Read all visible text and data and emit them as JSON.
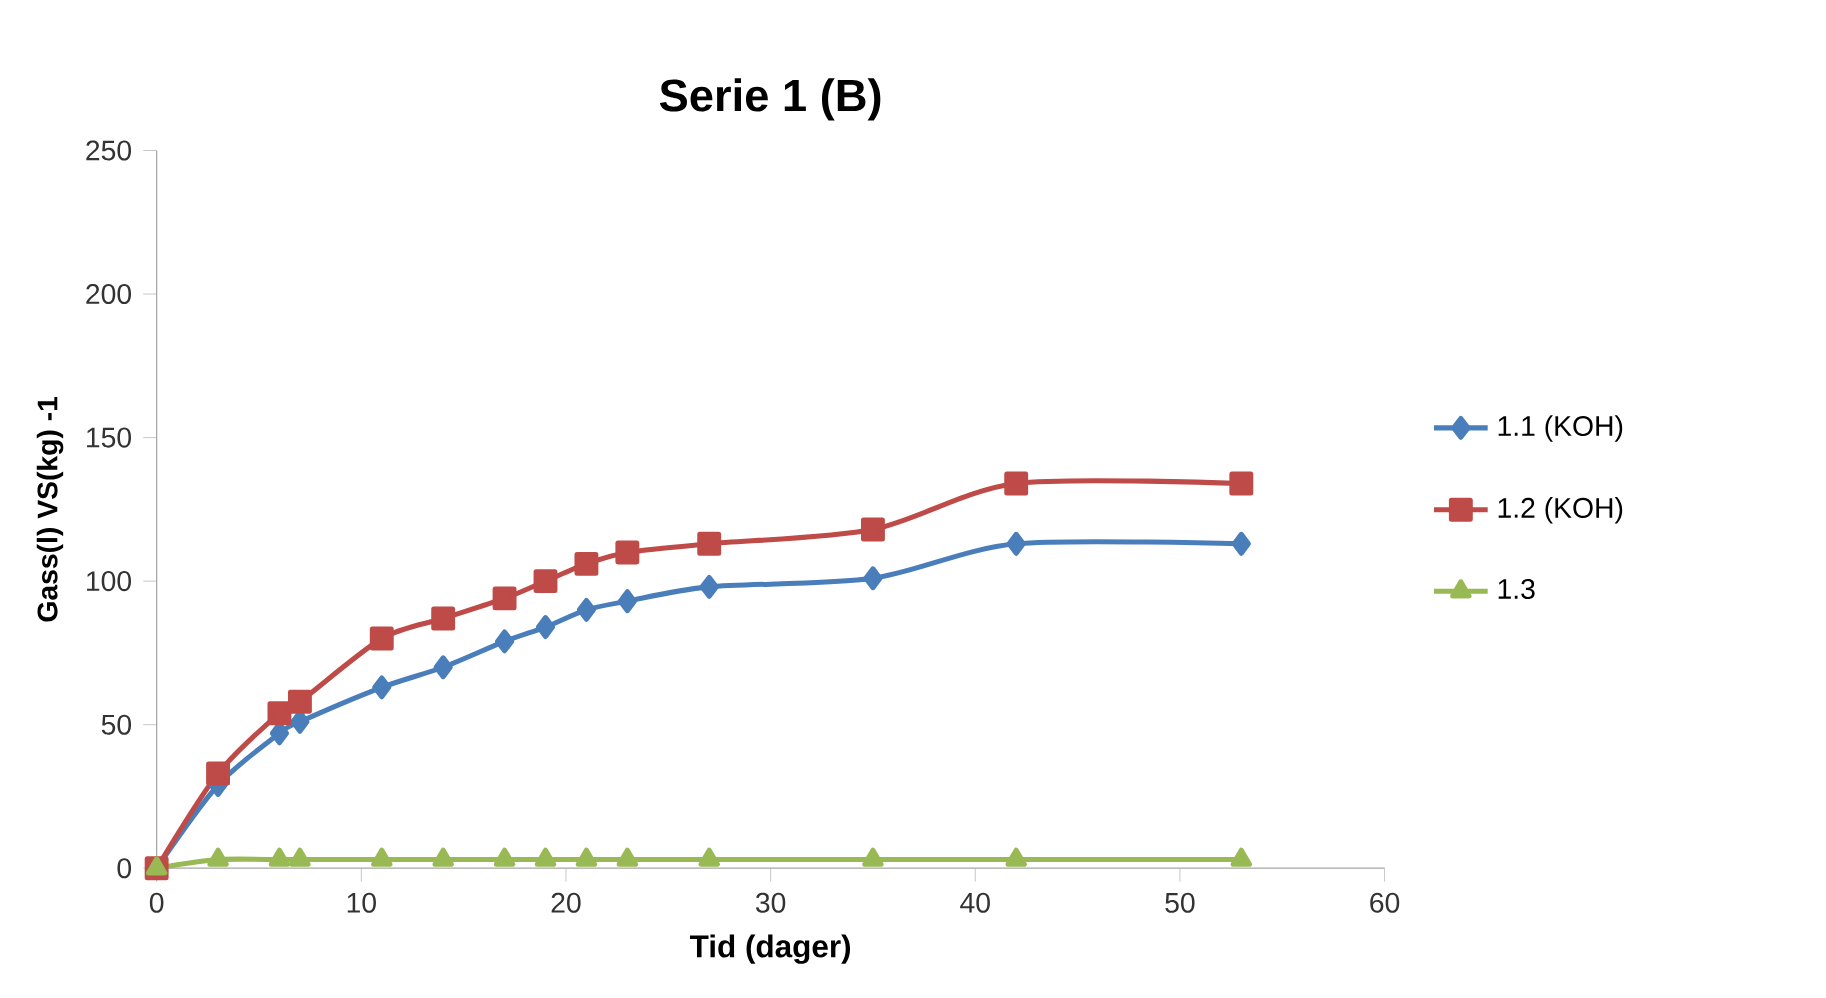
{
  "chart_data": {
    "type": "line",
    "title": "Serie 1 (B)",
    "xlabel": "Tid (dager)",
    "ylabel": "Gass(l) VS(kg) -1",
    "x": [
      0,
      3,
      6,
      7,
      11,
      14,
      17,
      19,
      21,
      23,
      27,
      35,
      42,
      53
    ],
    "series": [
      {
        "name": "1.1 (KOH)",
        "color": "#4a7ebb",
        "marker": "diamond",
        "values": [
          0,
          29,
          47,
          51,
          63,
          70,
          79,
          84,
          90,
          93,
          98,
          101,
          113,
          113
        ]
      },
      {
        "name": "1.2 (KOH)",
        "color": "#be4b48",
        "marker": "square",
        "values": [
          0,
          33,
          54,
          58,
          80,
          87,
          94,
          100,
          106,
          110,
          113,
          118,
          134,
          134
        ]
      },
      {
        "name": "1.3",
        "color": "#98b954",
        "marker": "triangle",
        "values": [
          0,
          3,
          3,
          3,
          3,
          3,
          3,
          3,
          3,
          3,
          3,
          3,
          3,
          3
        ]
      }
    ],
    "xlim": [
      0,
      60
    ],
    "xticks": [
      0,
      10,
      20,
      30,
      40,
      50,
      60
    ],
    "ylim": [
      0,
      250
    ],
    "yticks": [
      0,
      50,
      100,
      150,
      200,
      250
    ],
    "grid": false,
    "legend": "right",
    "line_style": "solid"
  }
}
